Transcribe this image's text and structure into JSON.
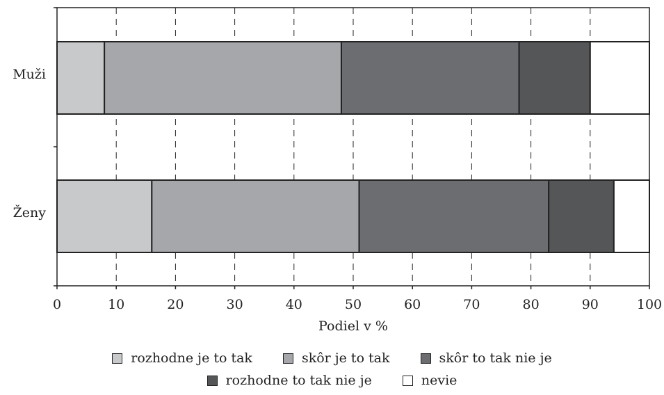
{
  "chart_data": {
    "type": "bar",
    "orientation": "horizontal",
    "stacked": true,
    "title": "",
    "xlabel": "Podiel v %",
    "ylabel": "",
    "xlim": [
      0,
      100
    ],
    "xticks": [
      0,
      10,
      20,
      30,
      40,
      50,
      60,
      70,
      80,
      90,
      100
    ],
    "grid": "vertical dashed",
    "legend_position": "bottom",
    "categories": [
      "Muži",
      "Ženy"
    ],
    "series": [
      {
        "name": "rozhodne je to tak",
        "color": "#c8c9cb",
        "values": [
          8,
          16
        ]
      },
      {
        "name": "skôr je to tak",
        "color": "#a6a7aa",
        "values": [
          40,
          35
        ]
      },
      {
        "name": "skôr to tak nie je",
        "color": "#6c6d70",
        "values": [
          30,
          32
        ]
      },
      {
        "name": "rozhodne to tak nie je",
        "color": "#555658",
        "values": [
          12,
          11
        ]
      },
      {
        "name": "nevie",
        "color": "#ffffff",
        "values": [
          10,
          6
        ]
      }
    ]
  }
}
